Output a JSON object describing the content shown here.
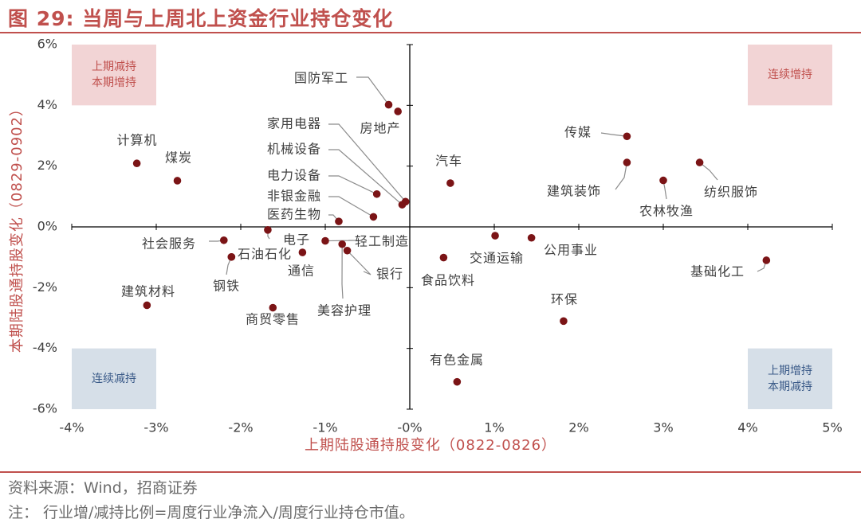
{
  "header": {
    "title": "图 29: 当周与上周北上资金行业持仓变化"
  },
  "footer": {
    "source": "资料来源：Wind，招商证券",
    "note": "注：  行业增/减持比例=周度行业净流入/周度行业持仓市值。"
  },
  "chart_data": {
    "type": "scatter",
    "xlabel": "上期陆股通持股变化（0822-0826）",
    "ylabel": "本期陆股通持股变化（0829-0902）",
    "xlim": [
      -0.04,
      0.05
    ],
    "ylim": [
      -0.06,
      0.06
    ],
    "x_ticks": [
      -0.04,
      -0.03,
      -0.02,
      -0.01,
      0,
      0.01,
      0.02,
      0.03,
      0.04,
      0.05
    ],
    "x_tick_labels": [
      "-4%",
      "-3%",
      "-2%",
      "-1%",
      "-0%",
      "1%",
      "2%",
      "3%",
      "4%",
      "5%"
    ],
    "y_ticks": [
      0.06,
      0.04,
      0.02,
      0,
      -0.02,
      -0.04,
      -0.06
    ],
    "y_tick_labels": [
      "6%",
      "4%",
      "2%",
      "0%",
      "-2%",
      "-4%",
      "-6%"
    ],
    "grid": false,
    "marker_color": "#7b1416",
    "label_color": "#404040",
    "axis_label_color": "#c0504d",
    "quadrant_boxes": [
      {
        "lines": [
          "上期减持",
          "本期增持"
        ],
        "x0": -0.04,
        "x1": -0.03,
        "y0": 0.06,
        "y1": 0.04,
        "fill": "#f2d4d5",
        "text_color": "#c0504d"
      },
      {
        "lines": [
          "连续增持"
        ],
        "x0": 0.04,
        "x1": 0.05,
        "y0": 0.06,
        "y1": 0.04,
        "fill": "#f2d4d5",
        "text_color": "#c0504d"
      },
      {
        "lines": [
          "连续减持"
        ],
        "x0": -0.04,
        "x1": -0.03,
        "y0": -0.04,
        "y1": -0.06,
        "fill": "#d6dfe8",
        "text_color": "#3a5a88"
      },
      {
        "lines": [
          "上期增持",
          "本期减持"
        ],
        "x0": 0.04,
        "x1": 0.05,
        "y0": -0.04,
        "y1": -0.06,
        "fill": "#d6dfe8",
        "text_color": "#3a5a88"
      }
    ],
    "points": [
      {
        "name": "计算机",
        "x": -0.0323,
        "y": 0.0209
      },
      {
        "name": "煤炭",
        "x": -0.0275,
        "y": 0.0152
      },
      {
        "name": "国防军工",
        "x": -0.0025,
        "y": 0.0402
      },
      {
        "name": "房地产",
        "x": -0.0014,
        "y": 0.038
      },
      {
        "name": "家用电器",
        "x": -0.0005,
        "y": 0.0083
      },
      {
        "name": "机械设备",
        "x": -0.0009,
        "y": 0.0073
      },
      {
        "name": "电力设备",
        "x": -0.0039,
        "y": 0.0108
      },
      {
        "name": "非银金融",
        "x": -0.0043,
        "y": 0.0033
      },
      {
        "name": "医药生物",
        "x": -0.0084,
        "y": 0.0018
      },
      {
        "name": "汽车",
        "x": 0.0048,
        "y": 0.0144
      },
      {
        "name": "传媒",
        "x": 0.0257,
        "y": 0.0298
      },
      {
        "name": "建筑装饰",
        "x": 0.0257,
        "y": 0.0212
      },
      {
        "name": "纺织服饰",
        "x": 0.0343,
        "y": 0.0212
      },
      {
        "name": "农林牧渔",
        "x": 0.03,
        "y": 0.0153
      },
      {
        "name": "社会服务",
        "x": -0.022,
        "y": -0.0044
      },
      {
        "name": "石油石化",
        "x": -0.0211,
        "y": -0.0099
      },
      {
        "name": "钢铁",
        "x": -0.0211,
        "y": -0.0099
      },
      {
        "name": "电子",
        "x": -0.0168,
        "y": -0.001
      },
      {
        "name": "通信",
        "x": -0.0127,
        "y": -0.0084
      },
      {
        "name": "轻工制造",
        "x": -0.01,
        "y": -0.0046
      },
      {
        "name": "银行",
        "x": -0.0074,
        "y": -0.0078
      },
      {
        "name": "美容护理",
        "x": -0.008,
        "y": -0.0057
      },
      {
        "name": "建筑材料",
        "x": -0.0311,
        "y": -0.0258
      },
      {
        "name": "商贸零售",
        "x": -0.0162,
        "y": -0.0266
      },
      {
        "name": "食品饮料",
        "x": 0.004,
        "y": -0.0101
      },
      {
        "name": "交通运输",
        "x": 0.0101,
        "y": -0.0029
      },
      {
        "name": "公用事业",
        "x": 0.0144,
        "y": -0.0036
      },
      {
        "name": "环保",
        "x": 0.0182,
        "y": -0.031
      },
      {
        "name": "基础化工",
        "x": 0.0422,
        "y": -0.011
      },
      {
        "name": "有色金属",
        "x": 0.0056,
        "y": -0.051
      }
    ]
  }
}
